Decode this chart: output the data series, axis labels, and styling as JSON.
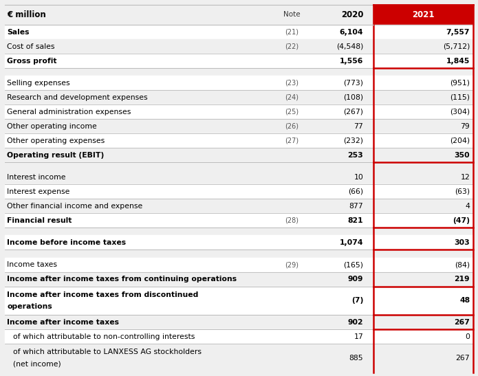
{
  "title_col": "€ million",
  "header_note": "Note",
  "header_2020": "2020",
  "header_2021": "2021",
  "header_bg_2021": "#cc0000",
  "header_text_2021": "#ffffff",
  "header_text_color": "#333333",
  "bg_color": "#efefef",
  "white_color": "#ffffff",
  "bold_color": "#000000",
  "red_line_color": "#cc0000",
  "gray_line_color": "#bbbbbb",
  "rows": [
    {
      "label": "Sales",
      "note": "(21)",
      "val2020": "6,104",
      "val2021": "7,557",
      "bold": true,
      "indent": 0,
      "top_line": "gray",
      "bottom_line": "none",
      "bg": "white"
    },
    {
      "label": "Cost of sales",
      "note": "(22)",
      "val2020": "(4,548)",
      "val2021": "(5,712)",
      "bold": false,
      "indent": 0,
      "top_line": "none",
      "bottom_line": "none",
      "bg": "light"
    },
    {
      "label": "Gross profit",
      "note": "",
      "val2020": "1,556",
      "val2021": "1,845",
      "bold": true,
      "indent": 0,
      "top_line": "gray",
      "bottom_line": "red",
      "bg": "white"
    },
    {
      "label": "",
      "note": "",
      "val2020": "",
      "val2021": "",
      "bold": false,
      "indent": 0,
      "top_line": "none",
      "bottom_line": "none",
      "bg": "light",
      "spacer": true
    },
    {
      "label": "Selling expenses",
      "note": "(23)",
      "val2020": "(773)",
      "val2021": "(951)",
      "bold": false,
      "indent": 0,
      "top_line": "none",
      "bottom_line": "none",
      "bg": "white"
    },
    {
      "label": "Research and development expenses",
      "note": "(24)",
      "val2020": "(108)",
      "val2021": "(115)",
      "bold": false,
      "indent": 0,
      "top_line": "gray",
      "bottom_line": "none",
      "bg": "light"
    },
    {
      "label": "General administration expenses",
      "note": "(25)",
      "val2020": "(267)",
      "val2021": "(304)",
      "bold": false,
      "indent": 0,
      "top_line": "gray",
      "bottom_line": "none",
      "bg": "white"
    },
    {
      "label": "Other operating income",
      "note": "(26)",
      "val2020": "77",
      "val2021": "79",
      "bold": false,
      "indent": 0,
      "top_line": "gray",
      "bottom_line": "none",
      "bg": "light"
    },
    {
      "label": "Other operating expenses",
      "note": "(27)",
      "val2020": "(232)",
      "val2021": "(204)",
      "bold": false,
      "indent": 0,
      "top_line": "gray",
      "bottom_line": "none",
      "bg": "white"
    },
    {
      "label": "Operating result (EBIT)",
      "note": "",
      "val2020": "253",
      "val2021": "350",
      "bold": true,
      "indent": 0,
      "top_line": "gray",
      "bottom_line": "red",
      "bg": "light"
    },
    {
      "label": "",
      "note": "",
      "val2020": "",
      "val2021": "",
      "bold": false,
      "indent": 0,
      "top_line": "none",
      "bottom_line": "none",
      "bg": "white",
      "spacer": true
    },
    {
      "label": "Interest income",
      "note": "",
      "val2020": "10",
      "val2021": "12",
      "bold": false,
      "indent": 0,
      "top_line": "none",
      "bottom_line": "none",
      "bg": "light"
    },
    {
      "label": "Interest expense",
      "note": "",
      "val2020": "(66)",
      "val2021": "(63)",
      "bold": false,
      "indent": 0,
      "top_line": "gray",
      "bottom_line": "none",
      "bg": "white"
    },
    {
      "label": "Other financial income and expense",
      "note": "",
      "val2020": "877",
      "val2021": "4",
      "bold": false,
      "indent": 0,
      "top_line": "gray",
      "bottom_line": "none",
      "bg": "light"
    },
    {
      "label": "Financial result",
      "note": "(28)",
      "val2020": "821",
      "val2021": "(47)",
      "bold": true,
      "indent": 0,
      "top_line": "gray",
      "bottom_line": "red",
      "bg": "white"
    },
    {
      "label": "",
      "note": "",
      "val2020": "",
      "val2021": "",
      "bold": false,
      "indent": 0,
      "top_line": "none",
      "bottom_line": "none",
      "bg": "light",
      "spacer": true
    },
    {
      "label": "Income before income taxes",
      "note": "",
      "val2020": "1,074",
      "val2021": "303",
      "bold": true,
      "indent": 0,
      "top_line": "none",
      "bottom_line": "red",
      "bg": "white"
    },
    {
      "label": "",
      "note": "",
      "val2020": "",
      "val2021": "",
      "bold": false,
      "indent": 0,
      "top_line": "none",
      "bottom_line": "none",
      "bg": "light",
      "spacer": true
    },
    {
      "label": "Income taxes",
      "note": "(29)",
      "val2020": "(165)",
      "val2021": "(84)",
      "bold": false,
      "indent": 0,
      "top_line": "none",
      "bottom_line": "none",
      "bg": "white"
    },
    {
      "label": "Income after income taxes from continuing operations",
      "note": "",
      "val2020": "909",
      "val2021": "219",
      "bold": true,
      "indent": 0,
      "top_line": "gray",
      "bottom_line": "red",
      "bg": "light"
    },
    {
      "label": "Income after income taxes from discontinued\noperations",
      "note": "",
      "val2020": "(7)",
      "val2021": "48",
      "bold": true,
      "indent": 0,
      "top_line": "none",
      "bottom_line": "red",
      "bg": "white",
      "multiline": true
    },
    {
      "label": "Income after income taxes",
      "note": "",
      "val2020": "902",
      "val2021": "267",
      "bold": true,
      "indent": 0,
      "top_line": "none",
      "bottom_line": "red",
      "bg": "light"
    },
    {
      "label": "of which attributable to non-controlling interests",
      "note": "",
      "val2020": "17",
      "val2021": "0",
      "bold": false,
      "indent": 1,
      "top_line": "none",
      "bottom_line": "none",
      "bg": "white"
    },
    {
      "label": "of which attributable to LANXESS AG stockholders\n(net income)",
      "note": "",
      "val2020": "885",
      "val2021": "267",
      "bold": false,
      "indent": 1,
      "top_line": "gray",
      "bottom_line": "none",
      "bg": "light",
      "multiline": true
    }
  ]
}
